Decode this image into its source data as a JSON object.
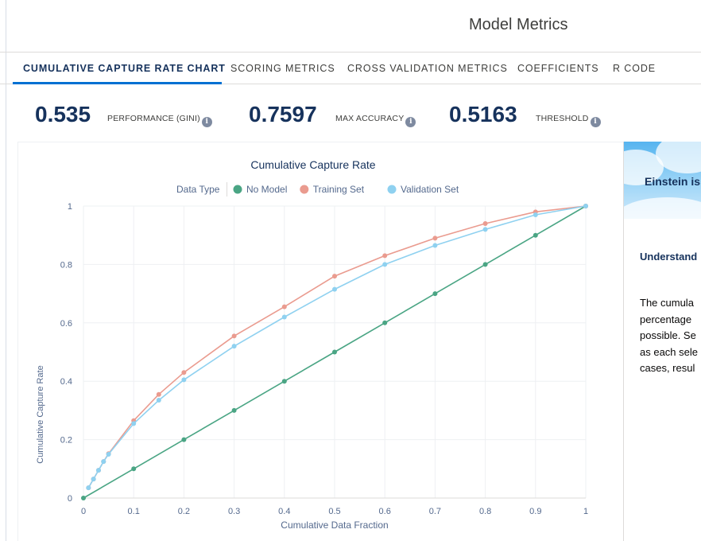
{
  "header": {
    "title": "Model Metrics"
  },
  "tabs": [
    {
      "label": "CUMULATIVE CAPTURE RATE CHART",
      "active": true
    },
    {
      "label": "SCORING METRICS",
      "active": false
    },
    {
      "label": "CROSS VALIDATION METRICS",
      "active": false
    },
    {
      "label": "COEFFICIENTS",
      "active": false
    },
    {
      "label": "R CODE",
      "active": false
    }
  ],
  "metrics": [
    {
      "value": "0.535",
      "label": "PERFORMANCE (GINI)"
    },
    {
      "value": "0.7597",
      "label": "MAX ACCURACY"
    },
    {
      "value": "0.5163",
      "label": "THRESHOLD"
    }
  ],
  "icons": {
    "info": "info-icon"
  },
  "side_panel": {
    "banner_title": "Einstein is",
    "heading": "Understand",
    "text_lines": [
      "The cumula",
      "percentage",
      "possible. Se",
      "as each sele",
      "cases, resul"
    ]
  },
  "chart_data": {
    "type": "line",
    "title": "Cumulative Capture Rate",
    "legend_title": "Data Type",
    "legend_position": "top",
    "xlabel": "Cumulative Data Fraction",
    "ylabel": "Cumulative Capture Rate",
    "xlim": [
      0,
      1
    ],
    "ylim": [
      0,
      1
    ],
    "x_ticks": [
      "0",
      "0.1",
      "0.2",
      "0.3",
      "0.4",
      "0.5",
      "0.6",
      "0.7",
      "0.8",
      "0.9",
      "1"
    ],
    "y_ticks": [
      "0",
      "0.2",
      "0.4",
      "0.6",
      "0.8",
      "1"
    ],
    "grid": true,
    "series": [
      {
        "name": "No Model",
        "color": "#4aa584",
        "x": [
          0,
          0.1,
          0.2,
          0.3,
          0.4,
          0.5,
          0.6,
          0.7,
          0.8,
          0.9,
          1
        ],
        "y": [
          0,
          0.1,
          0.2,
          0.3,
          0.4,
          0.5,
          0.6,
          0.7,
          0.8,
          0.9,
          1
        ]
      },
      {
        "name": "Training Set",
        "color": "#ea9b8f",
        "x": [
          0.01,
          0.02,
          0.03,
          0.04,
          0.05,
          0.1,
          0.15,
          0.2,
          0.3,
          0.4,
          0.5,
          0.6,
          0.7,
          0.8,
          0.9,
          1
        ],
        "y": [
          0.035,
          0.065,
          0.095,
          0.125,
          0.152,
          0.265,
          0.355,
          0.43,
          0.555,
          0.655,
          0.76,
          0.83,
          0.89,
          0.94,
          0.98,
          1
        ]
      },
      {
        "name": "Validation Set",
        "color": "#8fd1f0",
        "x": [
          0.01,
          0.02,
          0.03,
          0.04,
          0.05,
          0.1,
          0.15,
          0.2,
          0.3,
          0.4,
          0.5,
          0.6,
          0.7,
          0.8,
          0.9,
          1
        ],
        "y": [
          0.035,
          0.065,
          0.095,
          0.125,
          0.15,
          0.255,
          0.335,
          0.405,
          0.52,
          0.62,
          0.715,
          0.8,
          0.865,
          0.92,
          0.97,
          1
        ]
      }
    ]
  }
}
